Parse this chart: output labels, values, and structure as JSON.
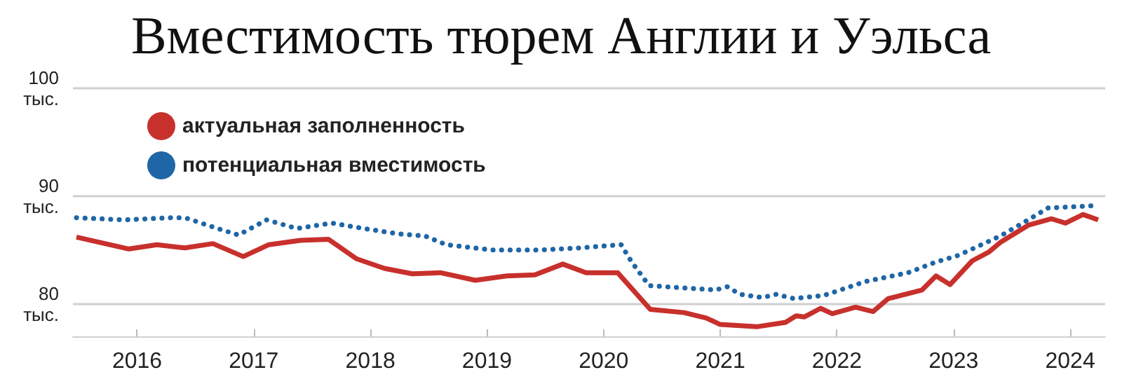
{
  "chart_data": {
    "type": "line",
    "title": "Вместимость тюрем Англии и Уэльса",
    "xlim": [
      2015.45,
      2024.3
    ],
    "xticks": [
      2016,
      2017,
      2018,
      2019,
      2020,
      2021,
      2022,
      2023,
      2024
    ],
    "ylim": [
      77,
      100
    ],
    "yticks": [
      {
        "value": 80,
        "label": "80\nтыс."
      },
      {
        "value": 90,
        "label": "90\nтыс."
      },
      {
        "value": 100,
        "label": "100\nтыс."
      }
    ],
    "grid": "y",
    "legend": "top left",
    "marker": "none",
    "series": [
      {
        "name": "актуальная заполненность",
        "color": "#c8302c",
        "line_style": "solid",
        "x": [
          2015.48,
          2015.93,
          2016.17,
          2016.41,
          2016.65,
          2016.91,
          2017.13,
          2017.4,
          2017.64,
          2017.88,
          2018.12,
          2018.36,
          2018.6,
          2018.9,
          2019.17,
          2019.41,
          2019.65,
          2019.85,
          2020.12,
          2020.4,
          2020.69,
          2020.88,
          2021.0,
          2021.32,
          2021.56,
          2021.65,
          2021.72,
          2021.86,
          2021.96,
          2022.16,
          2022.31,
          2022.44,
          2022.73,
          2022.85,
          2022.97,
          2023.16,
          2023.3,
          2023.4,
          2023.64,
          2023.84,
          2023.96,
          2024.11,
          2024.24
        ],
        "values": [
          86.2,
          85.1,
          85.5,
          85.2,
          85.6,
          84.4,
          85.5,
          85.9,
          86.0,
          84.2,
          83.3,
          82.8,
          82.9,
          82.2,
          82.6,
          82.7,
          83.7,
          82.9,
          82.9,
          79.5,
          79.2,
          78.7,
          78.1,
          77.9,
          78.3,
          78.9,
          78.8,
          79.6,
          79.1,
          79.7,
          79.3,
          80.5,
          81.3,
          82.6,
          81.8,
          84.0,
          84.8,
          85.7,
          87.3,
          87.9,
          87.5,
          88.3,
          87.8
        ]
      },
      {
        "name": "потенциальная вместимость",
        "color": "#1f66a6",
        "line_style": "dotted",
        "x": [
          2015.48,
          2015.89,
          2016.29,
          2016.41,
          2016.69,
          2016.87,
          2017.11,
          2017.37,
          2017.67,
          2018.0,
          2018.24,
          2018.47,
          2018.65,
          2019.05,
          2019.44,
          2019.8,
          2020.15,
          2020.24,
          2020.39,
          2020.96,
          2021.06,
          2021.17,
          2021.36,
          2021.48,
          2021.63,
          2021.89,
          2022.25,
          2022.61,
          2022.85,
          2023.04,
          2023.4,
          2023.64,
          2023.81,
          2024.18
        ],
        "values": [
          88.0,
          87.8,
          88.0,
          88.0,
          87.0,
          86.4,
          87.8,
          87.0,
          87.5,
          86.9,
          86.5,
          86.3,
          85.5,
          85.0,
          85.0,
          85.2,
          85.5,
          83.9,
          81.7,
          81.3,
          81.6,
          80.9,
          80.6,
          80.9,
          80.5,
          80.8,
          82.1,
          82.9,
          83.9,
          84.5,
          86.3,
          87.8,
          88.9,
          89.1
        ]
      }
    ]
  }
}
